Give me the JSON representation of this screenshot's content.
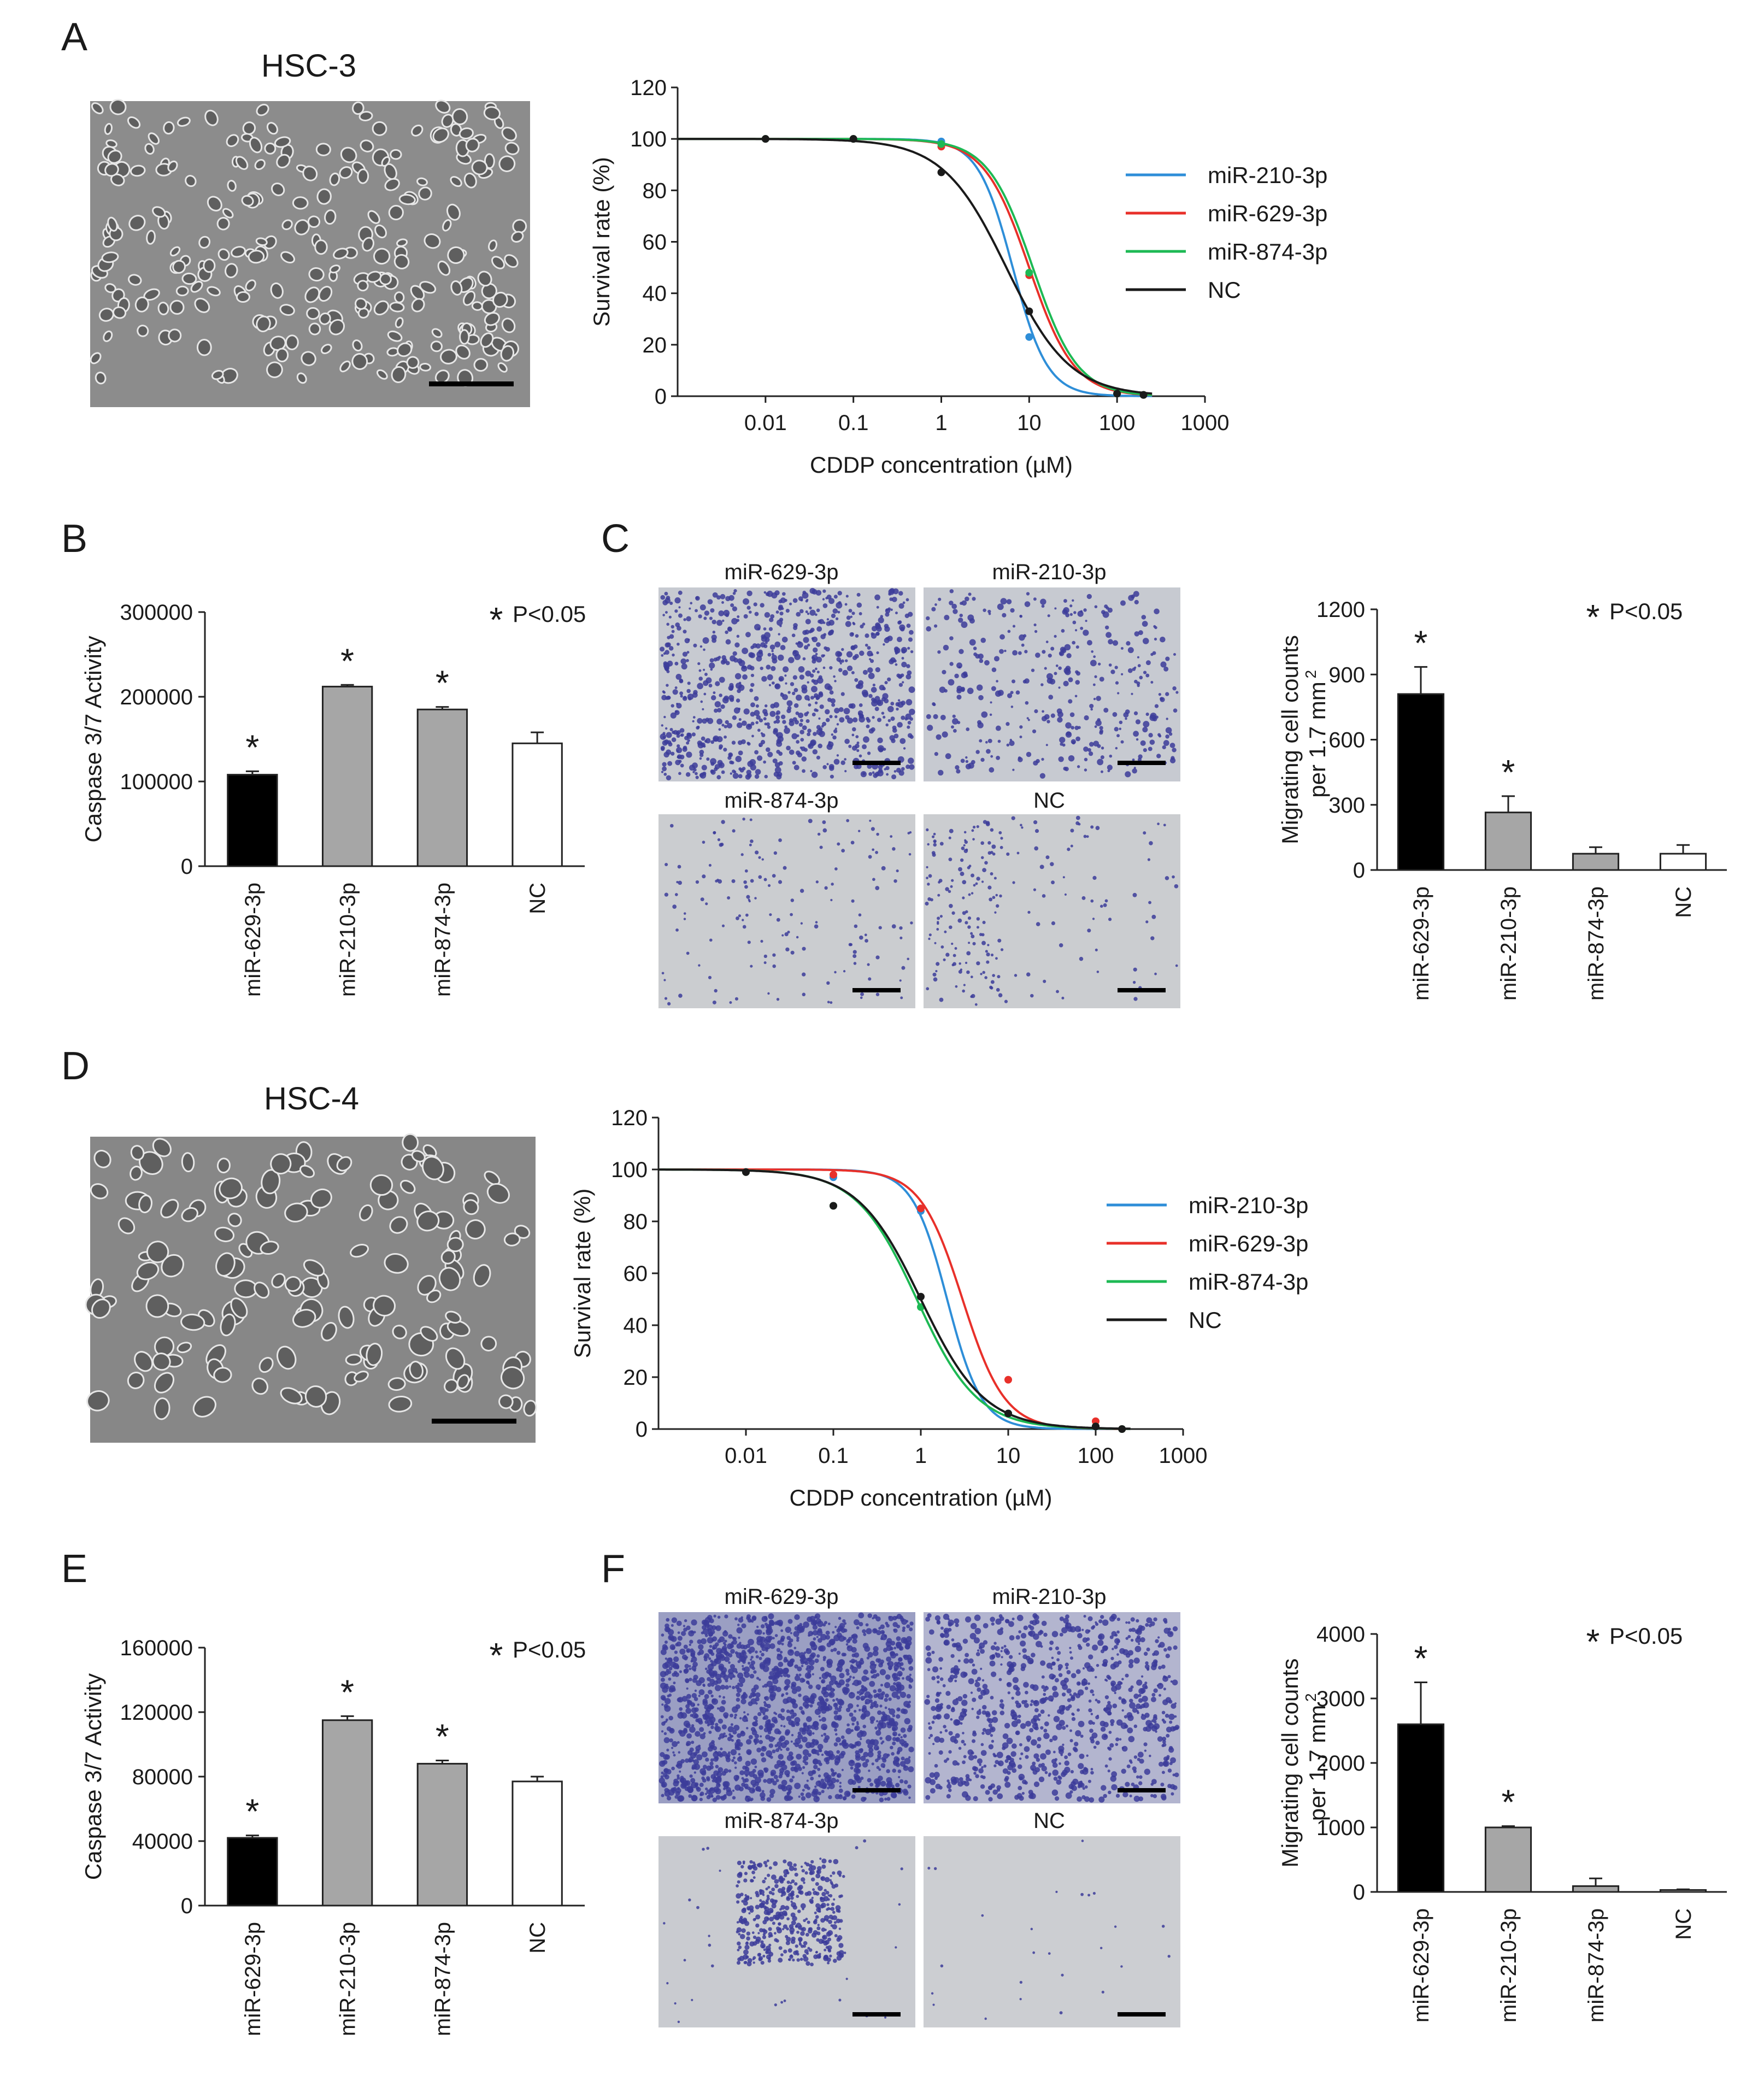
{
  "figure": {
    "panels": {
      "A": {
        "letter": "A",
        "cell_line": "HSC-3"
      },
      "B": {
        "letter": "B"
      },
      "C": {
        "letter": "C",
        "micrograph_labels": [
          "miR-629-3p",
          "miR-210-3p",
          "miR-874-3p",
          "NC"
        ]
      },
      "D": {
        "letter": "D",
        "cell_line": "HSC-4"
      },
      "E": {
        "letter": "E"
      },
      "F": {
        "letter": "F",
        "micrograph_labels": [
          "miR-629-3p",
          "miR-210-3p",
          "miR-874-3p",
          "NC"
        ]
      }
    },
    "colors": {
      "miR-210-3p": "#2e8ed8",
      "miR-629-3p": "#e8302a",
      "miR-874-3p": "#1db954",
      "NC": "#1a1a1a",
      "bar_black": "#000000",
      "bar_gray": "#a6a6a6",
      "bar_white": "#ffffff",
      "micro_bg": "#c9cccf",
      "micro_stain": "#3c3c9a",
      "phase_bg": "#8a8a8a"
    }
  },
  "chart_data": [
    {
      "id": "A_curve",
      "type": "line",
      "xscale": "log",
      "xlabel": "CDDP concentration (µM)",
      "ylabel": "Survival rate (%)",
      "ylim": [
        0,
        120
      ],
      "yticks": [
        0,
        20,
        40,
        60,
        80,
        100,
        120
      ],
      "xticks": [
        0.01,
        0.1,
        1,
        10,
        100,
        1000
      ],
      "xticklabels": [
        "0.01",
        "0.1",
        "1",
        "10",
        "100",
        "1000"
      ],
      "xlim": [
        0.001,
        1000
      ],
      "series": [
        {
          "name": "miR-210-3p",
          "ic50": 6.5,
          "hill": 2.2,
          "points": [
            [
              0.01,
              100
            ],
            [
              0.1,
              100
            ],
            [
              1,
              99
            ],
            [
              10,
              23
            ],
            [
              100,
              1
            ],
            [
              200,
              0.5
            ]
          ]
        },
        {
          "name": "miR-629-3p",
          "ic50": 10,
          "hill": 1.7,
          "points": [
            [
              0.01,
              100
            ],
            [
              0.1,
              100
            ],
            [
              1,
              97
            ],
            [
              10,
              47
            ],
            [
              100,
              1
            ],
            [
              200,
              0.5
            ]
          ]
        },
        {
          "name": "miR-874-3p",
          "ic50": 11,
          "hill": 1.7,
          "points": [
            [
              0.01,
              100
            ],
            [
              0.1,
              100
            ],
            [
              1,
              98
            ],
            [
              10,
              48
            ],
            [
              100,
              1
            ],
            [
              200,
              0.5
            ]
          ]
        },
        {
          "name": "NC",
          "ic50": 5.5,
          "hill": 1.2,
          "points": [
            [
              0.01,
              100
            ],
            [
              0.1,
              100
            ],
            [
              1,
              87
            ],
            [
              10,
              33
            ],
            [
              100,
              1
            ],
            [
              200,
              0.5
            ]
          ]
        }
      ]
    },
    {
      "id": "B_bar",
      "type": "bar",
      "ylabel": "Caspase 3/7 Activity",
      "categories": [
        "miR-629-3p",
        "miR-210-3p",
        "miR-874-3p",
        "NC"
      ],
      "values": [
        108000,
        212000,
        185000,
        145000
      ],
      "errors": [
        4000,
        2000,
        3000,
        13000
      ],
      "ylim": [
        0,
        300000
      ],
      "yticks": [
        0,
        100000,
        200000,
        300000
      ],
      "significant": [
        true,
        true,
        true,
        false
      ],
      "annotation": "P<0.05"
    },
    {
      "id": "C_bar",
      "type": "bar",
      "ylabel": "Migrating cell counts",
      "ylabel2": "per 1.7 mm",
      "categories": [
        "miR-629-3p",
        "miR-210-3p",
        "miR-874-3p",
        "NC"
      ],
      "values": [
        810,
        265,
        75,
        75
      ],
      "errors": [
        125,
        75,
        30,
        40
      ],
      "ylim": [
        0,
        1200
      ],
      "yticks": [
        0,
        300,
        600,
        900,
        1200
      ],
      "significant": [
        true,
        true,
        false,
        false
      ],
      "annotation": "P<0.05"
    },
    {
      "id": "D_curve",
      "type": "line",
      "xscale": "log",
      "xlabel": "CDDP concentration (µM)",
      "ylabel": "Survival rate (%)",
      "ylim": [
        0,
        120
      ],
      "yticks": [
        0,
        20,
        40,
        60,
        80,
        100,
        120
      ],
      "xticks": [
        0.01,
        0.1,
        1,
        10,
        100,
        1000
      ],
      "xticklabels": [
        "0.01",
        "0.1",
        "1",
        "10",
        "100",
        "1000"
      ],
      "xlim": [
        0.001,
        1000
      ],
      "series": [
        {
          "name": "miR-210-3p",
          "ic50": 2.0,
          "hill": 2.2,
          "points": [
            [
              0.01,
              99
            ],
            [
              0.1,
              97
            ],
            [
              1,
              84
            ],
            [
              10,
              6
            ],
            [
              100,
              1
            ],
            [
              200,
              0
            ]
          ]
        },
        {
          "name": "miR-629-3p",
          "ic50": 3.0,
          "hill": 1.8,
          "points": [
            [
              0.01,
              99
            ],
            [
              0.1,
              98
            ],
            [
              1,
              85
            ],
            [
              10,
              19
            ],
            [
              100,
              3
            ],
            [
              200,
              0
            ]
          ]
        },
        {
          "name": "miR-874-3p",
          "ic50": 0.9,
          "hill": 1.25,
          "points": [
            [
              0.01,
              99
            ],
            [
              0.1,
              86
            ],
            [
              1,
              47
            ],
            [
              10,
              6
            ],
            [
              100,
              1
            ],
            [
              200,
              0
            ]
          ]
        },
        {
          "name": "NC",
          "ic50": 1.0,
          "hill": 1.2,
          "points": [
            [
              0.01,
              99
            ],
            [
              0.1,
              86
            ],
            [
              1,
              51
            ],
            [
              10,
              6
            ],
            [
              100,
              1
            ],
            [
              200,
              0
            ]
          ]
        }
      ]
    },
    {
      "id": "E_bar",
      "type": "bar",
      "ylabel": "Caspase 3/7 Activity",
      "categories": [
        "miR-629-3p",
        "miR-210-3p",
        "miR-874-3p",
        "NC"
      ],
      "values": [
        42000,
        115000,
        88000,
        77000
      ],
      "errors": [
        1500,
        2500,
        2000,
        3000
      ],
      "ylim": [
        0,
        160000
      ],
      "yticks": [
        0,
        40000,
        80000,
        120000,
        160000
      ],
      "significant": [
        true,
        true,
        true,
        false
      ],
      "annotation": "P<0.05"
    },
    {
      "id": "F_bar",
      "type": "bar",
      "ylabel": "Migrating cell counts",
      "ylabel2": "per 1.7 mm",
      "categories": [
        "miR-629-3p",
        "miR-210-3p",
        "miR-874-3p",
        "NC"
      ],
      "values": [
        2600,
        1000,
        90,
        30
      ],
      "errors": [
        650,
        20,
        120,
        10
      ],
      "ylim": [
        0,
        4000
      ],
      "yticks": [
        0,
        1000,
        2000,
        3000,
        4000
      ],
      "significant": [
        true,
        true,
        false,
        false
      ],
      "annotation": "P<0.05"
    }
  ]
}
